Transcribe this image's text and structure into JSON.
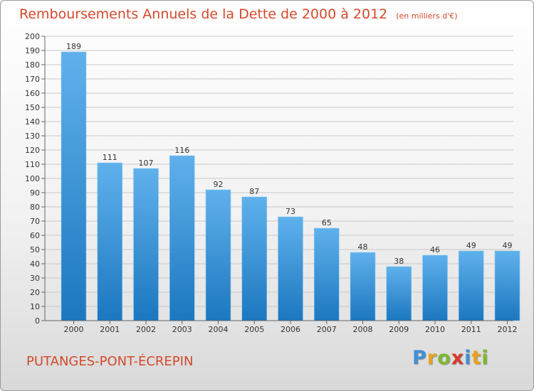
{
  "chart_data": {
    "type": "bar",
    "title": "Remboursements Annuels de la Dette de 2000 à 2012",
    "unit_label": "(en milliers d'€)",
    "categories": [
      "2000",
      "2001",
      "2002",
      "2003",
      "2004",
      "2005",
      "2006",
      "2007",
      "2008",
      "2009",
      "2010",
      "2011",
      "2012"
    ],
    "values": [
      189,
      111,
      107,
      116,
      92,
      87,
      73,
      65,
      48,
      38,
      46,
      49,
      49
    ],
    "ylim": [
      0,
      200
    ],
    "ytick_step": 10,
    "grid": true,
    "xlabel": "",
    "ylabel": ""
  },
  "city": "PUTANGES-PONT-ÉCREPIN",
  "logo": {
    "letters": [
      "P",
      "r",
      "o",
      "x",
      "i",
      "t",
      "i"
    ],
    "colors": [
      "#3f8fd6",
      "#e9a21b",
      "#7cba2f",
      "#d63a2a",
      "#3f8fd6",
      "#e9a21b",
      "#7cba2f"
    ]
  },
  "colors": {
    "title": "#d24a2b",
    "bar_top": "#5fb1ec",
    "bar_bottom": "#1c77bf",
    "grid": "#c8c8c8"
  }
}
